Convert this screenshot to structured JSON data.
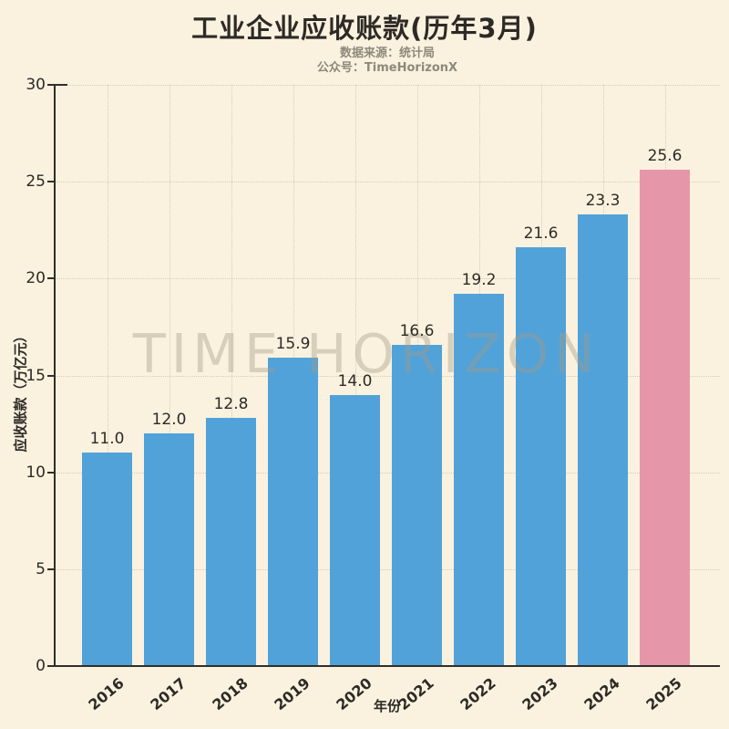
{
  "title": "工业企业应收账款(历年3月)",
  "subtitle": {
    "line1": "数据来源：统计局",
    "line2": "公众号：TimeHorizonX"
  },
  "watermark": "TIME HORIZON",
  "colors": {
    "background": "#faf2df",
    "bar": "#51a2d9",
    "highlight_bar": "#e696a9",
    "axis": "#312e2a",
    "title_text": "#2d2a26",
    "subtitle_text": "#8d897c"
  },
  "chart_data": {
    "type": "bar",
    "title": "工业企业应收账款(历年3月)",
    "subtitle_lines": [
      "数据来源：统计局",
      "公众号：TimeHorizonX"
    ],
    "categories": [
      "2016",
      "2017",
      "2018",
      "2019",
      "2020",
      "2021",
      "2022",
      "2023",
      "2024",
      "2025"
    ],
    "values": [
      11.0,
      12.0,
      12.8,
      15.9,
      14.0,
      16.6,
      19.2,
      21.6,
      23.3,
      25.6
    ],
    "value_labels": [
      "11.0",
      "12.0",
      "12.8",
      "15.9",
      "14.0",
      "16.6",
      "19.2",
      "21.6",
      "23.3",
      "25.6"
    ],
    "xlabel": "年份",
    "ylabel": "应收账款（万亿元）",
    "ylim": [
      0,
      30
    ],
    "yticks": [
      0,
      5,
      10,
      15,
      20,
      25,
      30
    ],
    "grid": true,
    "legend": "none",
    "bar_color": "#51a2d9",
    "highlight_color": "#e696a9",
    "highlight_index": 9,
    "watermark": "TIME HORIZON"
  }
}
